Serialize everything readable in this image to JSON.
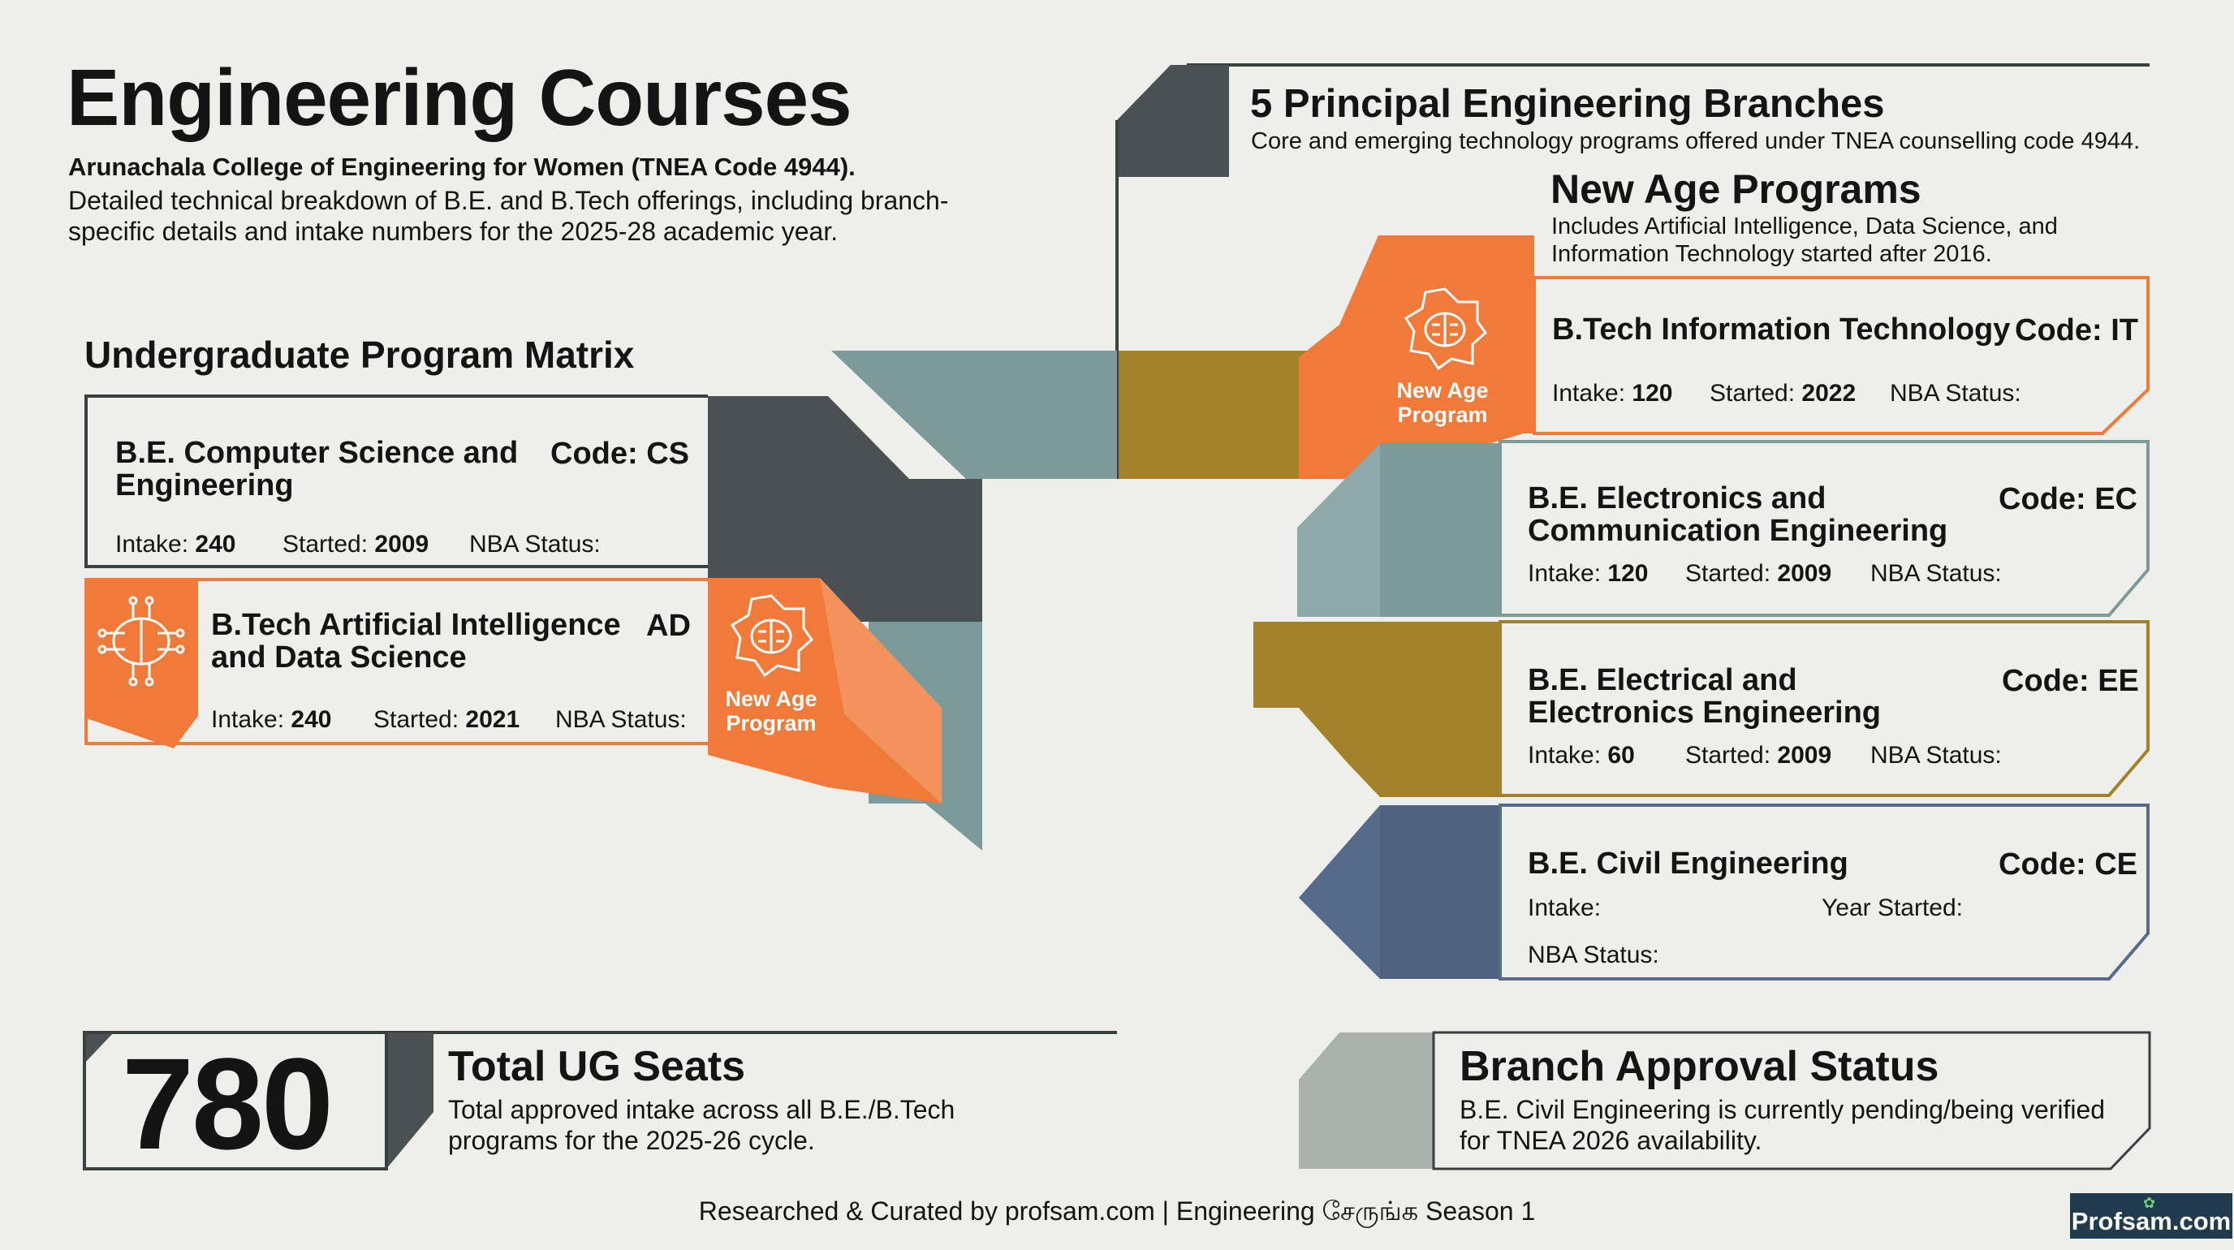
{
  "header": {
    "title": "Engineering Courses",
    "subtitle": "Arunachala College of Engineering for Women (TNEA Code 4944).",
    "description": "Detailed technical breakdown of B.E. and B.Tech offerings, including branch-specific details and intake numbers for the 2025-28 academic year."
  },
  "matrix": {
    "title": "Undergraduate Program Matrix",
    "cards": [
      {
        "title": "B.E. Computer Science and Engineering",
        "code": "Code: CS",
        "intake_label": "Intake:",
        "intake": "240",
        "started_label": "Started:",
        "started": "2009",
        "nba_label": "NBA Status:"
      },
      {
        "title": "B.Tech Artificial Intelligence and Data Science",
        "code": "AD",
        "intake_label": "Intake:",
        "intake": "240",
        "started_label": "Started:",
        "started": "2021",
        "nba_label": "NBA Status:",
        "badge": "New Age Program"
      }
    ]
  },
  "branches": {
    "title": "5 Principal Engineering Branches",
    "description": "Core and emerging technology programs offered under TNEA counselling code 4944.",
    "new_age": {
      "title": "New Age Programs",
      "description": "Includes Artificial Intelligence, Data Science, and Information Technology started after 2016."
    },
    "cards": [
      {
        "title": "B.Tech Information Technology",
        "code": "Code: IT",
        "intake_label": "Intake:",
        "intake": "120",
        "started_label": "Started:",
        "started": "2022",
        "nba_label": "NBA Status:",
        "badge": "New Age Program"
      },
      {
        "title": "B.E. Electronics and Communication Engineering",
        "code": "Code: EC",
        "intake_label": "Intake:",
        "intake": "120",
        "started_label": "Started:",
        "started": "2009",
        "nba_label": "NBA Status:"
      },
      {
        "title": "B.E. Electrical and Electronics Engineering",
        "code": "Code: EE",
        "intake_label": "Intake:",
        "intake": "60",
        "started_label": "Started:",
        "started": "2009",
        "nba_label": "NBA Status:"
      },
      {
        "title": "B.E. Civil Engineering",
        "code": "Code: CE",
        "intake_label": "Intake:",
        "started_label": "Year Started:",
        "nba_label": "NBA Status:"
      }
    ]
  },
  "summary": {
    "seats_number": "780",
    "seats_title": "Total UG Seats",
    "seats_desc": "Total approved intake across all B.E./B.Tech programs for the 2025-26 cycle.",
    "approval_title": "Branch Approval Status",
    "approval_desc": "B.E. Civil Engineering is currently pending/being verified for TNEA 2026 availability."
  },
  "footer": {
    "text": "Researched & Curated by profsam.com | Engineering சேருங்க Season 1",
    "brand": "Profsam.com"
  },
  "colors": {
    "background": "#eeeeea",
    "dark_slate": "#4a5154",
    "teal_gray": "#7d9a9b",
    "olive_gold": "#a3802a",
    "orange": "#f07a3a",
    "slate_blue": "#566b8a",
    "light_gray": "#a9b3ae"
  },
  "icons": [
    "brain-chip-icon",
    "circuit-brain-icon",
    "leaf-icon"
  ]
}
